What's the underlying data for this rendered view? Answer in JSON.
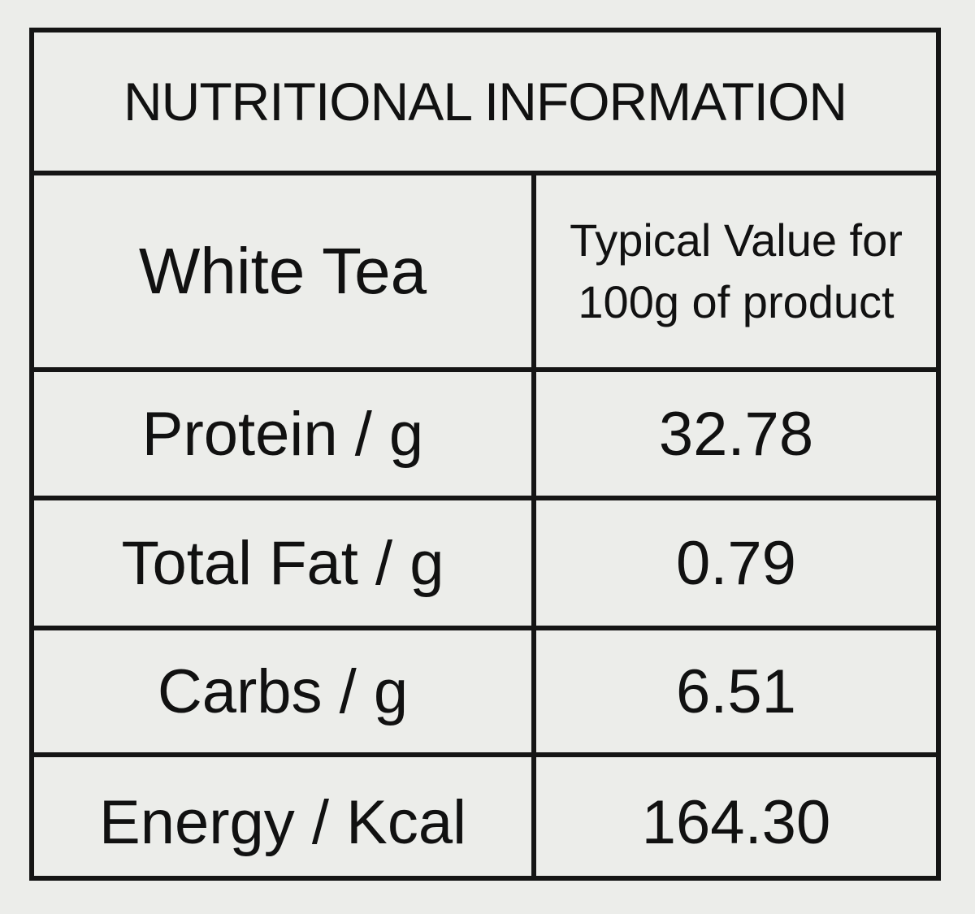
{
  "title": "NUTRITIONAL INFORMATION",
  "table": {
    "header": [
      "White Tea",
      [
        "Typical Value for",
        "100g of product"
      ]
    ],
    "rows": [
      [
        "Protein / g",
        "32.78"
      ],
      [
        "Total Fat / g",
        "0.79"
      ],
      [
        "Carbs / g",
        "6.51"
      ],
      [
        "Energy / Kcal",
        "164.30"
      ]
    ]
  }
}
